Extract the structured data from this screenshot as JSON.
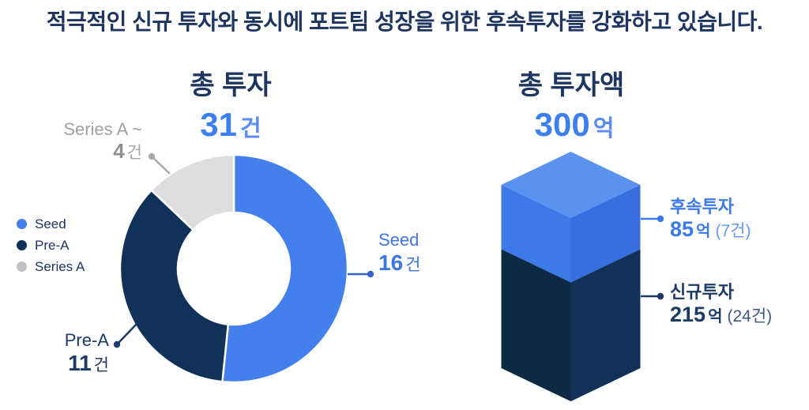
{
  "title": "적극적인 신규 투자와 동시에 포트팀 성장을 위한 후속투자를 강화하고 있습니다.",
  "colors": {
    "title_navy": "#1E3560",
    "primary_blue": "#3C7FF2",
    "dark_navy": "#1C3A66",
    "label_gray": "#9FA0A2",
    "background": "#FFFFFF"
  },
  "left_chart": {
    "heading": "총 투자",
    "total_value": "31",
    "total_unit": "건",
    "legend": [
      {
        "label": "Seed",
        "color": "#4380EE"
      },
      {
        "label": "Pre-A",
        "color": "#103158"
      },
      {
        "label": "Series A",
        "color": "#BFC0C2"
      }
    ],
    "callouts": {
      "seed": {
        "name": "Seed",
        "value": "16",
        "unit": "건",
        "leader_color": "#3465C8"
      },
      "pre_a": {
        "name": "Pre-A",
        "value": "11",
        "unit": "건",
        "leader_color": "#1C3A66"
      },
      "series_a": {
        "name": "Series A ~",
        "value": "4",
        "unit": "건",
        "leader_color": "#A7A8AA"
      }
    }
  },
  "right_chart": {
    "heading": "총 투자액",
    "total_value": "300",
    "total_unit": "억",
    "callouts": {
      "follow_on": {
        "name": "후속투자",
        "value": "85",
        "unit": "억",
        "count": "(7건)",
        "leader_color": "#3B79EE"
      },
      "new_investment": {
        "name": "신규투자",
        "value": "215",
        "unit": "억",
        "count": "(24건)",
        "leader_color": "#1C3A66"
      }
    }
  },
  "chart_data": [
    {
      "type": "pie",
      "subtype": "donut",
      "title": "총 투자",
      "total_label": "31건",
      "unit": "건",
      "categories": [
        "Seed",
        "Pre-A",
        "Series A"
      ],
      "values": [
        16,
        11,
        4
      ],
      "colors": [
        "#4380EE",
        "#103158",
        "#DDDDDF"
      ],
      "start_angle_deg": 0,
      "direction": "clockwise",
      "legend_position": "left"
    },
    {
      "type": "bar",
      "subtype": "3d-stacked-column",
      "title": "총 투자액",
      "total_label": "300억",
      "unit": "억",
      "series": [
        {
          "name": "후속투자",
          "value": 85,
          "count": 7
        },
        {
          "name": "신규투자",
          "value": 215,
          "count": 24
        }
      ],
      "colors": {
        "top_face": "#5B92F0",
        "follow_on_left": "#3D7AE8",
        "follow_on_right": "#376FE0",
        "new_left": "#0D2946",
        "new_right": "#123158"
      }
    }
  ]
}
